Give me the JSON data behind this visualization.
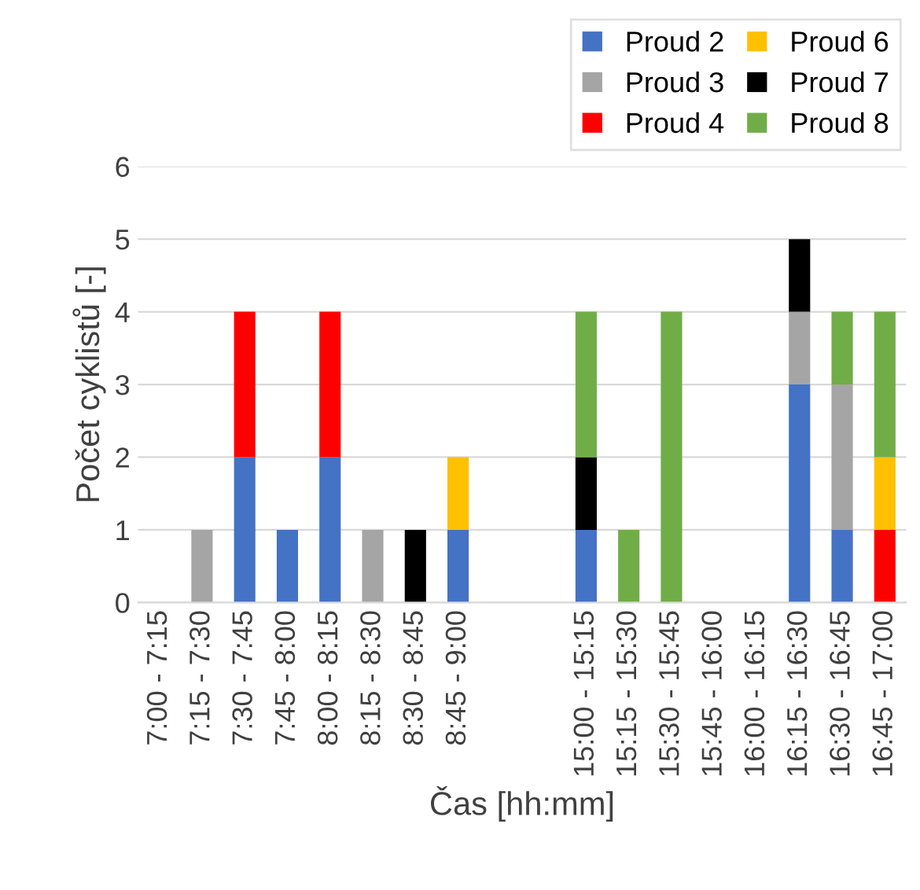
{
  "chart_data": {
    "type": "bar",
    "stacked": true,
    "xlabel": "Čas [hh:mm]",
    "ylabel": "Počet cyklistů [-]",
    "categories": [
      "7:00 - 7:15",
      "7:15 - 7:30",
      "7:30 - 7:45",
      "7:45 - 8:00",
      "8:00 - 8:15",
      "8:15 - 8:30",
      "8:30 - 8:45",
      "8:45 - 9:00",
      null,
      null,
      "15:00 - 15:15",
      "15:15 - 15:30",
      "15:30 - 15:45",
      "15:45 - 16:00",
      "16:00 - 16:15",
      "16:15 - 16:30",
      "16:30 - 16:45",
      "16:45 - 17:00"
    ],
    "series": [
      {
        "name": "Proud 2",
        "color": "#4472c4",
        "values": [
          0,
          0,
          2,
          1,
          2,
          0,
          0,
          1,
          0,
          0,
          1,
          0,
          0,
          0,
          0,
          3,
          1,
          0
        ]
      },
      {
        "name": "Proud 3",
        "color": "#a5a5a5",
        "values": [
          0,
          1,
          0,
          0,
          0,
          1,
          0,
          0,
          0,
          0,
          0,
          0,
          0,
          0,
          0,
          1,
          2,
          0
        ]
      },
      {
        "name": "Proud 4",
        "color": "#ff0000",
        "values": [
          0,
          0,
          2,
          0,
          2,
          0,
          0,
          0,
          0,
          0,
          0,
          0,
          0,
          0,
          0,
          0,
          0,
          1
        ]
      },
      {
        "name": "Proud 6",
        "color": "#ffc000",
        "values": [
          0,
          0,
          0,
          0,
          0,
          0,
          0,
          1,
          0,
          0,
          0,
          0,
          0,
          0,
          0,
          0,
          0,
          1
        ]
      },
      {
        "name": "Proud 7",
        "color": "#000000",
        "values": [
          0,
          0,
          0,
          0,
          0,
          0,
          1,
          0,
          0,
          0,
          1,
          0,
          0,
          0,
          0,
          1,
          0,
          0
        ]
      },
      {
        "name": "Proud 8",
        "color": "#70ad47",
        "values": [
          0,
          0,
          0,
          0,
          0,
          0,
          0,
          0,
          0,
          0,
          2,
          1,
          4,
          0,
          0,
          0,
          1,
          2
        ]
      }
    ],
    "ylim": [
      0,
      6
    ],
    "yticks": [
      0,
      1,
      2,
      3,
      4,
      5,
      6
    ],
    "grid": "y",
    "legend": "top right"
  }
}
